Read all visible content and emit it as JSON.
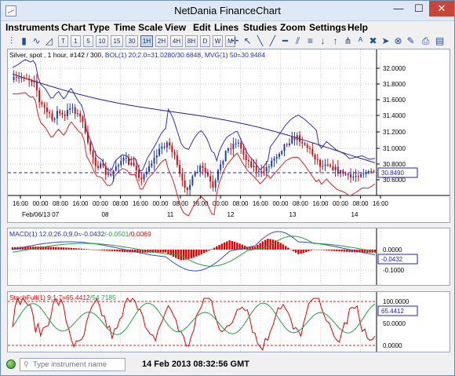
{
  "window": {
    "title": "NetDania FinanceChart",
    "min": "—",
    "max": "☐",
    "close": "✕"
  },
  "menu": [
    "Instruments",
    "Chart Type",
    "Time Scale",
    "View",
    "Edit",
    "Lines",
    "Studies",
    "Zoom",
    "Settings",
    "Help"
  ],
  "toolbar": {
    "intervals": [
      "T",
      "1",
      "5",
      "10",
      "15",
      "30",
      "1H",
      "2H",
      "4H",
      "8H",
      "D",
      "W",
      "M"
    ],
    "active_interval": "1H"
  },
  "panels": {
    "price": {
      "legend_main": "Silver, spot , 1 hour, #142 / 300, ",
      "legend_bol": "BOL(1) 20;2.0=31.0280/30.6848, ",
      "legend_mvg": "MVG(1) 50=30.9484",
      "yticks": [
        "32.0000",
        "31.8000",
        "31.6000",
        "31.4000",
        "31.2000",
        "31.0000",
        "30.8000",
        "30.6000"
      ],
      "last_price": "30.8490",
      "xticks_time": [
        "16:00",
        "00:00",
        "08:00",
        "16:00",
        "00:00",
        "08:00",
        "16:00",
        "00:00",
        "08:00",
        "16:00",
        "00:00",
        "08:00",
        "16:00",
        "00:00",
        "08:00",
        "16:00",
        "00:00",
        "08:00",
        "16:00"
      ],
      "xticks_date": [
        "Feb/06/13 07",
        "08",
        "11",
        "12",
        "13",
        "14"
      ]
    },
    "macd": {
      "legend_a": "MACD(1) 12.0;26.0;9.0=-0.0432",
      "legend_b": "/-0.0501",
      "legend_c": "/0.0069",
      "yticks": [
        "0.0000",
        "-0.1000"
      ],
      "last": "-0.0432"
    },
    "stoch": {
      "legend_a": "StochFull(1) 9;1;7=65.4412",
      "legend_b": "/54.7185",
      "yticks": [
        "100.0000",
        "50.0000",
        "0.0000"
      ],
      "last": "65.4412"
    }
  },
  "status": {
    "search_placeholder": "Type instrument name",
    "time": "14 Feb 2013 08:32:56 GMT"
  },
  "colors": {
    "up": "#1e3fb0",
    "down": "#d01010",
    "band": "#3030c0",
    "lowband": "#e02020",
    "mvg": "#2020a0",
    "macd_line": "#3050c0",
    "signal": "#20a040",
    "hist": "#e00000"
  }
}
